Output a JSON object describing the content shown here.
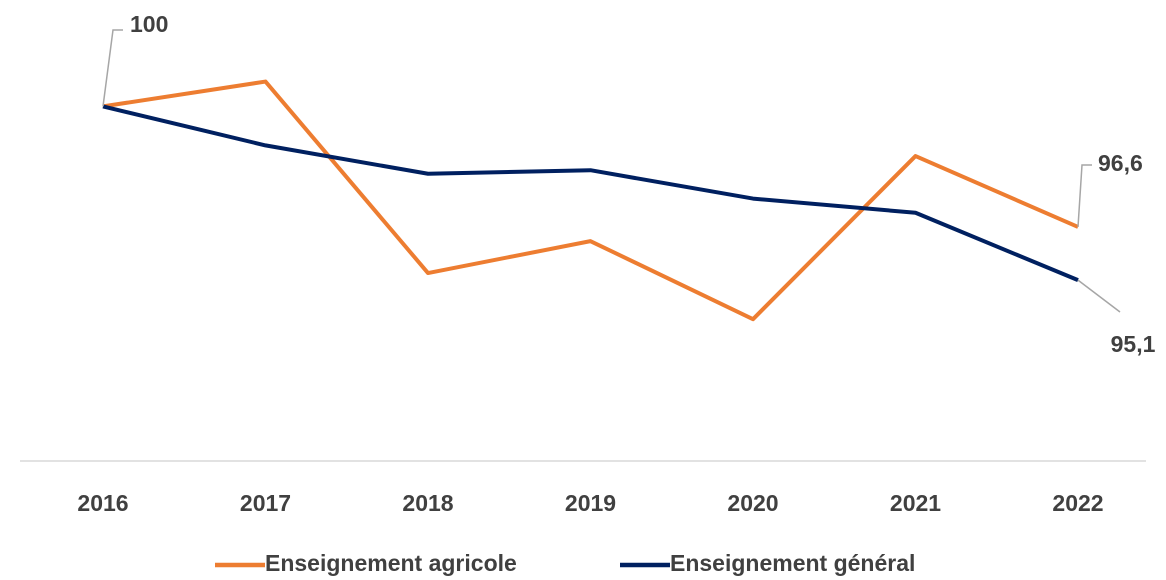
{
  "chart_data": {
    "type": "line",
    "categories": [
      "2016",
      "2017",
      "2018",
      "2019",
      "2020",
      "2021",
      "2022"
    ],
    "series": [
      {
        "name": "Enseignement agricole",
        "color": "#ed7d31",
        "values": [
          100,
          100.7,
          95.3,
          96.2,
          94.0,
          98.6,
          96.6
        ],
        "value_labels": [
          "100",
          null,
          null,
          null,
          null,
          null,
          "96,6"
        ]
      },
      {
        "name": "Enseignement général",
        "color": "#002060",
        "values": [
          100,
          98.9,
          98.1,
          98.2,
          97.4,
          97.0,
          95.1
        ],
        "value_labels": [
          null,
          null,
          null,
          null,
          null,
          null,
          "95,1"
        ]
      }
    ],
    "ylim": [
      90,
      103
    ],
    "grid": false,
    "legend": "bottom"
  }
}
